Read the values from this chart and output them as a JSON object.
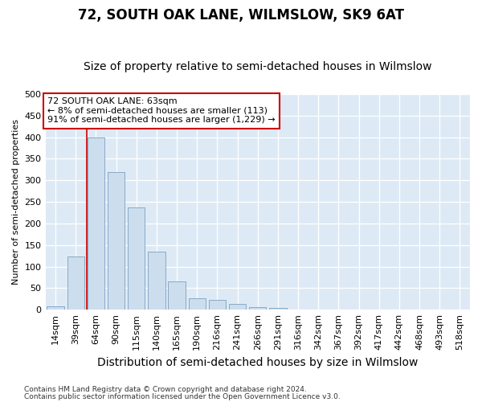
{
  "title": "72, SOUTH OAK LANE, WILMSLOW, SK9 6AT",
  "subtitle": "Size of property relative to semi-detached houses in Wilmslow",
  "xlabel": "Distribution of semi-detached houses by size in Wilmslow",
  "ylabel": "Number of semi-detached properties",
  "categories": [
    "14sqm",
    "39sqm",
    "64sqm",
    "90sqm",
    "115sqm",
    "140sqm",
    "165sqm",
    "190sqm",
    "216sqm",
    "241sqm",
    "266sqm",
    "291sqm",
    "316sqm",
    "342sqm",
    "367sqm",
    "392sqm",
    "417sqm",
    "442sqm",
    "468sqm",
    "493sqm",
    "518sqm"
  ],
  "values": [
    7,
    123,
    400,
    320,
    237,
    135,
    65,
    27,
    23,
    14,
    5,
    4,
    1,
    0,
    0,
    0,
    0,
    0,
    0,
    0,
    0
  ],
  "bar_color": "#ccdded",
  "bar_edge_color": "#88aac8",
  "vline_color": "#cc0000",
  "vline_x_index": 2,
  "annotation_title": "72 SOUTH OAK LANE: 63sqm",
  "annotation_line1": "← 8% of semi-detached houses are smaller (113)",
  "annotation_line2": "91% of semi-detached houses are larger (1,229) →",
  "annotation_box_facecolor": "#ffffff",
  "annotation_box_edgecolor": "#cc0000",
  "footnote1": "Contains HM Land Registry data © Crown copyright and database right 2024.",
  "footnote2": "Contains public sector information licensed under the Open Government Licence v3.0.",
  "ylim": [
    0,
    500
  ],
  "yticks": [
    0,
    50,
    100,
    150,
    200,
    250,
    300,
    350,
    400,
    450,
    500
  ],
  "fig_facecolor": "#ffffff",
  "plot_facecolor": "#ddeaf5",
  "grid_color": "#ffffff",
  "title_fontsize": 12,
  "subtitle_fontsize": 10,
  "xlabel_fontsize": 10,
  "ylabel_fontsize": 8,
  "tick_fontsize": 8,
  "footnote_fontsize": 6.5,
  "annotation_fontsize": 8
}
